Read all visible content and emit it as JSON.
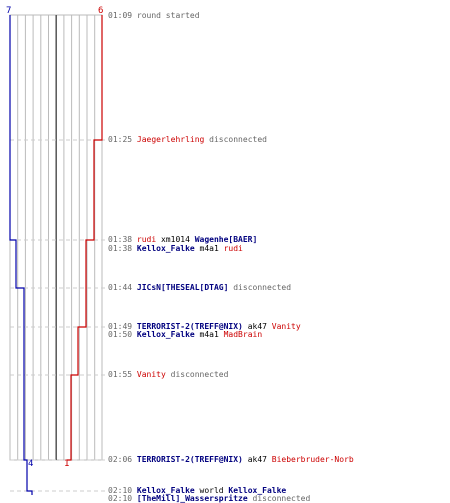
{
  "counts": {
    "start_blue": "7",
    "start_red": "6",
    "end_blue": "4",
    "end_red": "1"
  },
  "colors": {
    "blue_team": "#0000aa",
    "red_team": "#cc0000",
    "gridline": "#bbbbbb",
    "center_line": "#555555",
    "dash_line": "#cccccc"
  },
  "events": [
    {
      "time": "01:09",
      "parts": [
        {
          "text": "round started",
          "cls": "grey"
        }
      ]
    },
    {
      "time": "01:25",
      "parts": [
        {
          "text": "Jaegerlehrling",
          "cls": "red"
        },
        {
          "text": " disconnected",
          "cls": "grey"
        }
      ]
    },
    {
      "time": "01:38",
      "parts": [
        {
          "text": "rudi",
          "cls": "red"
        },
        {
          "text": " xm1014 ",
          "cls": "plain"
        },
        {
          "text": "Wagenhe[BAER]",
          "cls": "blue"
        }
      ]
    },
    {
      "time": "01:38",
      "parts": [
        {
          "text": "Kellox_Falke",
          "cls": "blue"
        },
        {
          "text": " m4a1 ",
          "cls": "plain"
        },
        {
          "text": "rudi",
          "cls": "red"
        }
      ]
    },
    {
      "time": "01:44",
      "parts": [
        {
          "text": "JICsN[THESEAL[DTAG]",
          "cls": "blue"
        },
        {
          "text": " disconnected",
          "cls": "grey"
        }
      ]
    },
    {
      "time": "01:49",
      "parts": [
        {
          "text": "TERRORIST-2(TREFF@NIX)",
          "cls": "blue"
        },
        {
          "text": " ak47 ",
          "cls": "plain"
        },
        {
          "text": "Vanity",
          "cls": "red"
        }
      ]
    },
    {
      "time": "01:50",
      "parts": [
        {
          "text": "Kellox_Falke",
          "cls": "blue"
        },
        {
          "text": " m4a1 ",
          "cls": "plain"
        },
        {
          "text": "MadBrain",
          "cls": "red"
        }
      ]
    },
    {
      "time": "01:55",
      "parts": [
        {
          "text": "Vanity",
          "cls": "red"
        },
        {
          "text": " disconnected",
          "cls": "grey"
        }
      ]
    },
    {
      "time": "02:06",
      "parts": [
        {
          "text": "TERRORIST-2(TREFF@NIX)",
          "cls": "blue"
        },
        {
          "text": " ak47 ",
          "cls": "plain"
        },
        {
          "text": "Bieberbruder-Norb",
          "cls": "red"
        }
      ]
    },
    {
      "time": "02:10",
      "parts": [
        {
          "text": "Kellox_Falke",
          "cls": "blue"
        },
        {
          "text": " world ",
          "cls": "plain"
        },
        {
          "text": "Kellox_Falke",
          "cls": "blue"
        }
      ]
    },
    {
      "time": "02:10",
      "parts": [
        {
          "text": "[TheMill]_Wasserspritze",
          "cls": "blue"
        },
        {
          "text": " disconnected",
          "cls": "grey"
        }
      ]
    }
  ]
}
